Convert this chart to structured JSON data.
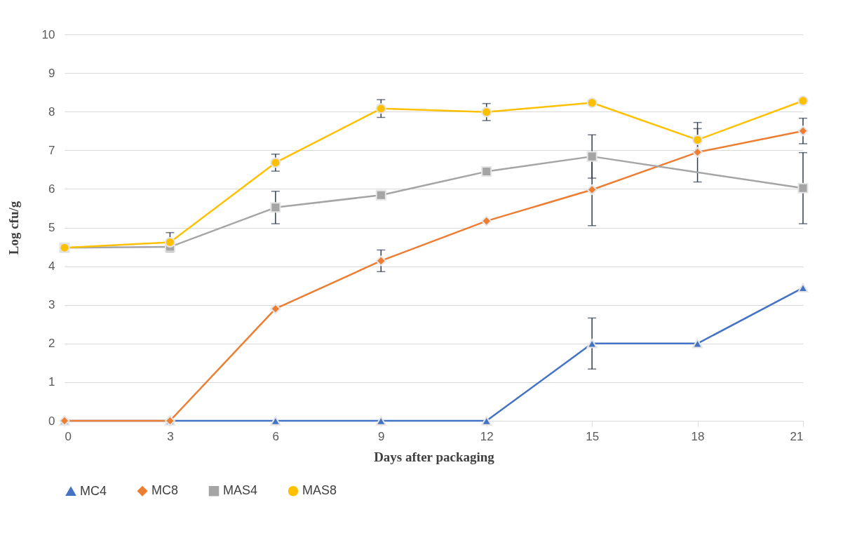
{
  "chart_data": {
    "type": "line",
    "xlabel": "Days after packaging",
    "ylabel": "Log cfu/g",
    "x": [
      0,
      3,
      6,
      9,
      12,
      15,
      18,
      21
    ],
    "xlim": [
      0,
      21
    ],
    "xticks": [
      0,
      3,
      6,
      9,
      12,
      15,
      18,
      21
    ],
    "ylim": [
      0,
      10
    ],
    "yticks": [
      0,
      1,
      2,
      3,
      4,
      5,
      6,
      7,
      8,
      9,
      10
    ],
    "grid": "y",
    "legend": "bottom",
    "series": [
      {
        "name": "MC4",
        "color": "#4472c4",
        "marker": "triangle",
        "values": [
          0,
          0,
          0,
          0,
          0,
          2.0,
          2.0,
          3.44
        ],
        "errors": [
          null,
          null,
          null,
          null,
          null,
          0.66,
          null,
          null
        ]
      },
      {
        "name": "MC8",
        "color": "#ed7d31",
        "marker": "diamond",
        "values": [
          0,
          0,
          2.9,
          4.14,
          5.17,
          5.98,
          6.95,
          7.5
        ],
        "errors": [
          null,
          null,
          null,
          0.28,
          null,
          0.93,
          0.77,
          0.33
        ]
      },
      {
        "name": "MAS4",
        "color": "#a5a5a5",
        "marker": "square",
        "values": [
          4.48,
          4.5,
          5.52,
          5.84,
          6.45,
          6.84,
          null,
          6.02
        ],
        "errors": [
          null,
          null,
          0.42,
          null,
          null,
          0.56,
          null,
          0.92
        ]
      },
      {
        "name": "MAS8",
        "color": "#ffc000",
        "marker": "circle",
        "values": [
          4.48,
          4.62,
          6.68,
          8.08,
          7.99,
          8.23,
          7.27,
          8.28
        ],
        "errors": [
          null,
          0.25,
          0.22,
          0.23,
          0.22,
          null,
          0.29,
          null
        ]
      }
    ]
  }
}
